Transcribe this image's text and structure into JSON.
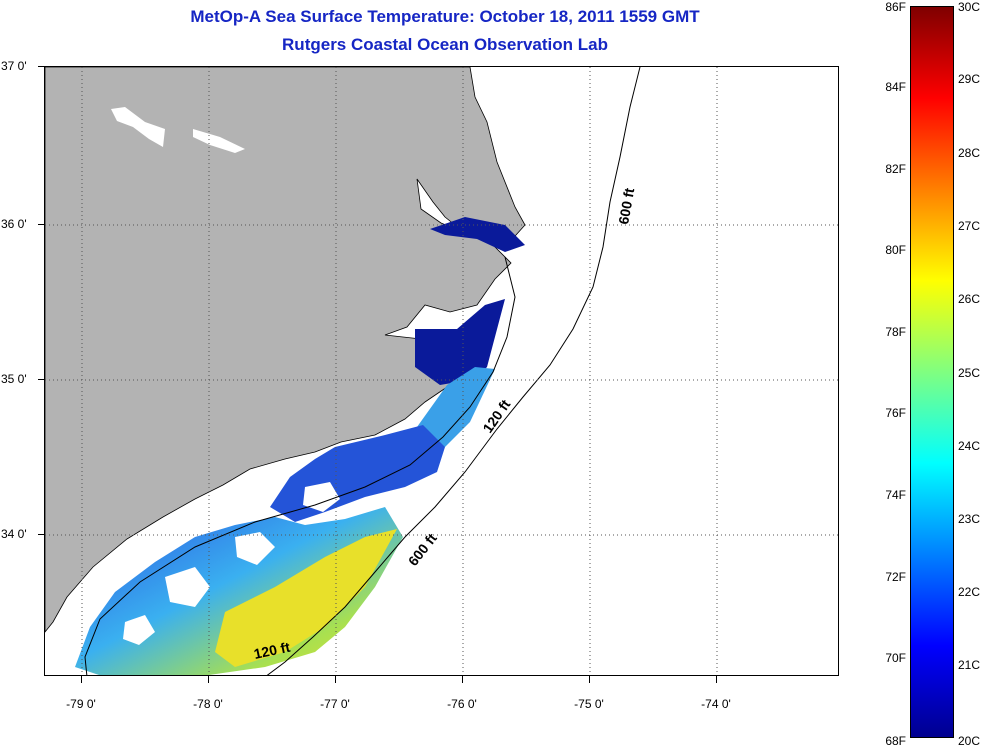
{
  "title": {
    "line1": "MetOp-A Sea Surface Temperature:  October 18, 2011 1559 GMT",
    "line2": "Rutgers Coastal Ocean Observation Lab"
  },
  "map": {
    "region": "North Carolina coast",
    "land_color": "#b3b3b3",
    "lat_labels": [
      "37 0'",
      "36 0'",
      "35 0'",
      "34 0'"
    ],
    "lon_labels": [
      "-79 0'",
      "-78 0'",
      "-77 0'",
      "-76 0'",
      "-75 0'",
      "-74 0'"
    ],
    "contour_labels": [
      "600 ft",
      "120 ft",
      "600 ft",
      "120 ft"
    ]
  },
  "colorbar": {
    "f_labels": [
      "86F",
      "84F",
      "82F",
      "80F",
      "78F",
      "76F",
      "74F",
      "72F",
      "70F",
      "68F"
    ],
    "c_labels": [
      "30C",
      "29C",
      "28C",
      "27C",
      "26C",
      "25C",
      "24C",
      "23C",
      "22C",
      "21C",
      "20C"
    ],
    "colors": [
      "#7f0000",
      "#ff0000",
      "#ff8000",
      "#ffff00",
      "#80ff80",
      "#00ffff",
      "#0080ff",
      "#0000ff",
      "#00008f"
    ]
  }
}
